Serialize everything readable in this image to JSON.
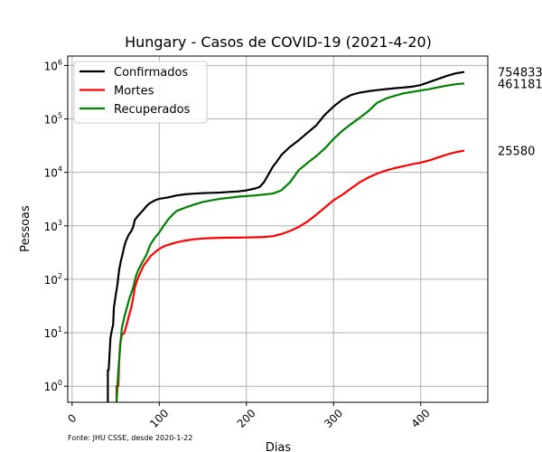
{
  "chart_data": {
    "type": "line",
    "title": "Hungary - Casos de COVID-19 (2021-4-20)",
    "xlabel": "Dias",
    "ylabel": "Pessoas",
    "y_scale": "log",
    "xlim": [
      -5,
      477
    ],
    "ylim": [
      0.5,
      1500000
    ],
    "x_ticks": [
      0,
      100,
      200,
      300,
      400
    ],
    "y_ticks": [
      {
        "value": 1,
        "base": "10",
        "exp": "0"
      },
      {
        "value": 10,
        "base": "10",
        "exp": "1"
      },
      {
        "value": 100,
        "base": "10",
        "exp": "2"
      },
      {
        "value": 1000,
        "base": "10",
        "exp": "3"
      },
      {
        "value": 10000,
        "base": "10",
        "exp": "4"
      },
      {
        "value": 100000,
        "base": "10",
        "exp": "5"
      },
      {
        "value": 1000000,
        "base": "10",
        "exp": "6"
      }
    ],
    "grid": true,
    "legend_position": "top-left",
    "source_note": "Fonte: JHU CSSE, desde 2020-1-22",
    "series": [
      {
        "name": "Confirmados",
        "color": "#000000",
        "end_label": "754833",
        "points": [
          [
            41,
            0.5
          ],
          [
            41,
            2
          ],
          [
            42,
            2
          ],
          [
            44,
            8
          ],
          [
            46,
            12
          ],
          [
            47,
            14
          ],
          [
            48,
            30
          ],
          [
            50,
            50
          ],
          [
            52,
            80
          ],
          [
            54,
            150
          ],
          [
            56,
            220
          ],
          [
            58,
            300
          ],
          [
            60,
            420
          ],
          [
            62,
            530
          ],
          [
            65,
            680
          ],
          [
            68,
            800
          ],
          [
            70,
            950
          ],
          [
            72,
            1300
          ],
          [
            75,
            1500
          ],
          [
            78,
            1700
          ],
          [
            82,
            2000
          ],
          [
            86,
            2400
          ],
          [
            90,
            2700
          ],
          [
            95,
            3000
          ],
          [
            100,
            3200
          ],
          [
            110,
            3400
          ],
          [
            120,
            3700
          ],
          [
            130,
            3900
          ],
          [
            140,
            4000
          ],
          [
            150,
            4100
          ],
          [
            160,
            4150
          ],
          [
            170,
            4200
          ],
          [
            180,
            4300
          ],
          [
            190,
            4400
          ],
          [
            200,
            4600
          ],
          [
            210,
            5000
          ],
          [
            215,
            5300
          ],
          [
            220,
            6500
          ],
          [
            225,
            9000
          ],
          [
            230,
            12500
          ],
          [
            235,
            16000
          ],
          [
            240,
            21000
          ],
          [
            250,
            30000
          ],
          [
            260,
            40000
          ],
          [
            270,
            55000
          ],
          [
            280,
            75000
          ],
          [
            290,
            120000
          ],
          [
            300,
            170000
          ],
          [
            310,
            230000
          ],
          [
            320,
            280000
          ],
          [
            330,
            310000
          ],
          [
            340,
            330000
          ],
          [
            350,
            345000
          ],
          [
            360,
            360000
          ],
          [
            370,
            375000
          ],
          [
            380,
            385000
          ],
          [
            390,
            400000
          ],
          [
            400,
            430000
          ],
          [
            410,
            490000
          ],
          [
            420,
            560000
          ],
          [
            430,
            640000
          ],
          [
            440,
            710000
          ],
          [
            450,
            754833
          ]
        ]
      },
      {
        "name": "Mortes",
        "color": "#ff0000",
        "end_label": "25580",
        "points": [
          [
            51,
            0.5
          ],
          [
            51,
            1
          ],
          [
            53,
            1
          ],
          [
            54,
            3
          ],
          [
            55,
            6
          ],
          [
            57,
            9
          ],
          [
            60,
            10
          ],
          [
            63,
            15
          ],
          [
            65,
            20
          ],
          [
            68,
            30
          ],
          [
            70,
            45
          ],
          [
            72,
            70
          ],
          [
            75,
            100
          ],
          [
            78,
            130
          ],
          [
            82,
            180
          ],
          [
            86,
            220
          ],
          [
            90,
            270
          ],
          [
            95,
            320
          ],
          [
            100,
            370
          ],
          [
            105,
            410
          ],
          [
            110,
            440
          ],
          [
            120,
            490
          ],
          [
            130,
            530
          ],
          [
            140,
            560
          ],
          [
            150,
            580
          ],
          [
            160,
            590
          ],
          [
            170,
            597
          ],
          [
            180,
            600
          ],
          [
            190,
            600
          ],
          [
            200,
            605
          ],
          [
            210,
            610
          ],
          [
            220,
            620
          ],
          [
            230,
            640
          ],
          [
            240,
            700
          ],
          [
            250,
            800
          ],
          [
            260,
            950
          ],
          [
            270,
            1200
          ],
          [
            280,
            1600
          ],
          [
            290,
            2200
          ],
          [
            300,
            3000
          ],
          [
            310,
            3800
          ],
          [
            320,
            5000
          ],
          [
            330,
            6500
          ],
          [
            340,
            8000
          ],
          [
            350,
            9500
          ],
          [
            360,
            10800
          ],
          [
            370,
            12000
          ],
          [
            380,
            13000
          ],
          [
            390,
            14200
          ],
          [
            400,
            15200
          ],
          [
            410,
            16800
          ],
          [
            420,
            19000
          ],
          [
            430,
            21500
          ],
          [
            440,
            23800
          ],
          [
            450,
            25580
          ]
        ]
      },
      {
        "name": "Recuperados",
        "color": "#008000",
        "end_label": "461181",
        "points": [
          [
            51,
            0.5
          ],
          [
            52,
            1
          ],
          [
            53,
            2
          ],
          [
            55,
            5
          ],
          [
            57,
            12
          ],
          [
            60,
            20
          ],
          [
            63,
            30
          ],
          [
            66,
            45
          ],
          [
            70,
            70
          ],
          [
            73,
            110
          ],
          [
            76,
            150
          ],
          [
            80,
            200
          ],
          [
            85,
            280
          ],
          [
            90,
            450
          ],
          [
            95,
            600
          ],
          [
            100,
            750
          ],
          [
            105,
            1000
          ],
          [
            110,
            1300
          ],
          [
            115,
            1600
          ],
          [
            120,
            1900
          ],
          [
            130,
            2200
          ],
          [
            140,
            2500
          ],
          [
            150,
            2800
          ],
          [
            160,
            3000
          ],
          [
            170,
            3200
          ],
          [
            180,
            3350
          ],
          [
            190,
            3500
          ],
          [
            200,
            3600
          ],
          [
            210,
            3700
          ],
          [
            220,
            3850
          ],
          [
            230,
            4000
          ],
          [
            240,
            4600
          ],
          [
            250,
            6500
          ],
          [
            260,
            11000
          ],
          [
            270,
            15000
          ],
          [
            280,
            20000
          ],
          [
            290,
            28000
          ],
          [
            300,
            42000
          ],
          [
            310,
            60000
          ],
          [
            320,
            80000
          ],
          [
            330,
            105000
          ],
          [
            340,
            140000
          ],
          [
            350,
            200000
          ],
          [
            360,
            240000
          ],
          [
            370,
            270000
          ],
          [
            380,
            300000
          ],
          [
            390,
            320000
          ],
          [
            400,
            340000
          ],
          [
            410,
            360000
          ],
          [
            420,
            390000
          ],
          [
            430,
            420000
          ],
          [
            440,
            445000
          ],
          [
            450,
            461181
          ]
        ]
      }
    ]
  }
}
